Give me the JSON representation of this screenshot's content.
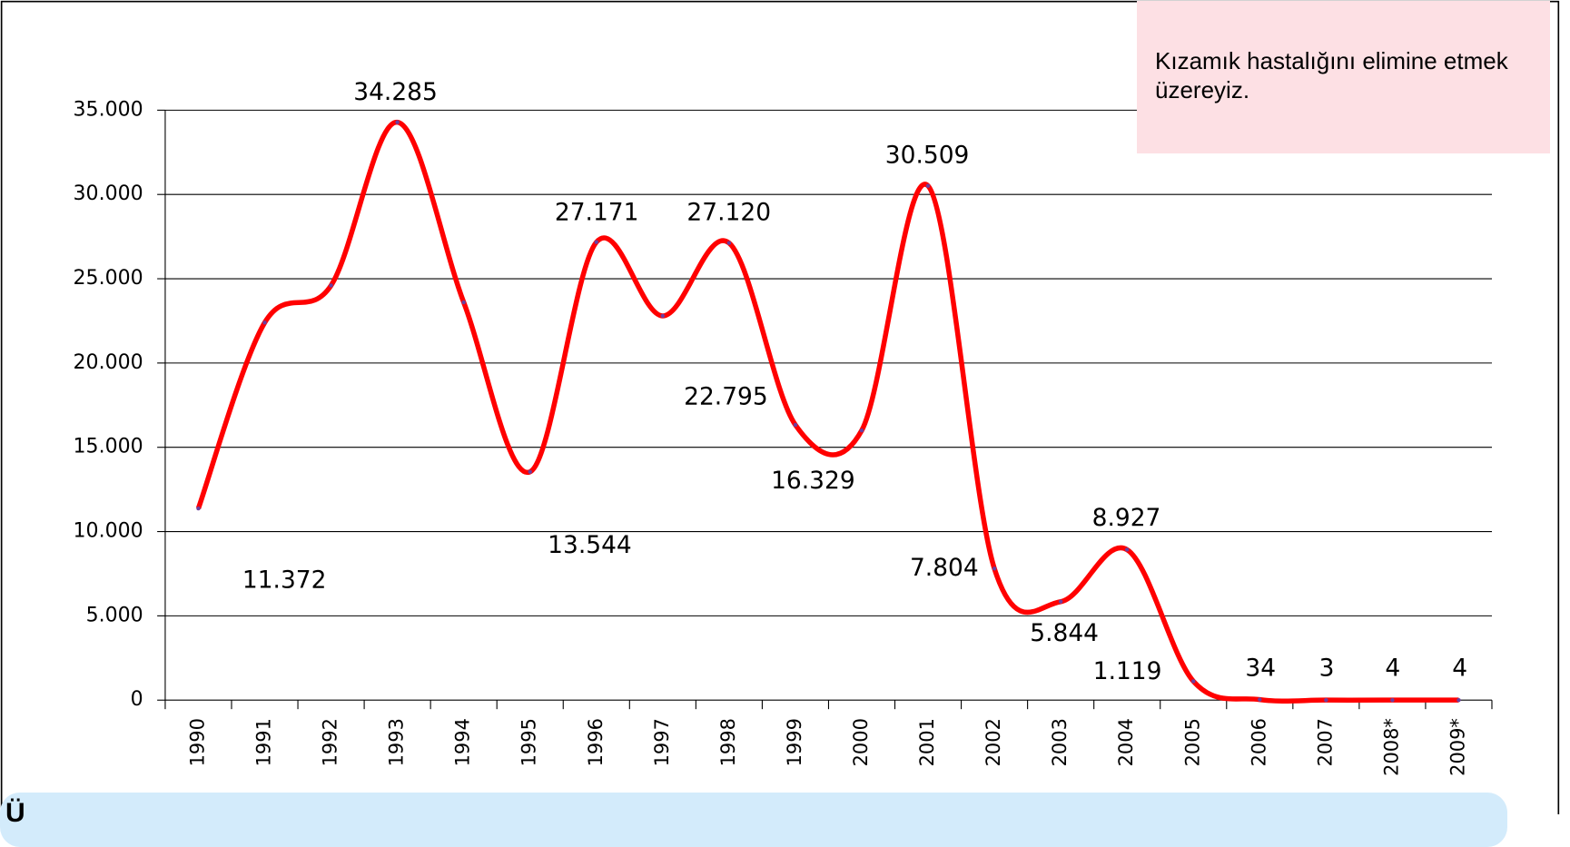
{
  "chart_data": {
    "type": "line",
    "categories": [
      "1990",
      "1991",
      "1992",
      "1993",
      "1994",
      "1995",
      "1996",
      "1997",
      "1998",
      "1999",
      "2000",
      "2001",
      "2002",
      "2003",
      "2004",
      "2005",
      "2006",
      "2007",
      "2008*",
      "2009*"
    ],
    "values": [
      11372,
      22400,
      24600,
      34285,
      23600,
      13544,
      27171,
      22795,
      27120,
      16329,
      16000,
      30509,
      7804,
      5844,
      8927,
      1119,
      34,
      3,
      4,
      4
    ],
    "value_labels": [
      "11.372",
      null,
      null,
      "34.285",
      null,
      "13.544",
      "27.171",
      "22.795",
      "27.120",
      "16.329",
      null,
      "30.509",
      "7.804",
      "5.844",
      "8.927",
      "1.119",
      "34",
      "3",
      "4",
      "4"
    ],
    "color": "#ff0000",
    "ylim": [
      0,
      35000
    ],
    "yticks": [
      {
        "value": 0,
        "label": "0"
      },
      {
        "value": 5000,
        "label": "5.000"
      },
      {
        "value": 10000,
        "label": "10.000"
      },
      {
        "value": 15000,
        "label": "15.000"
      },
      {
        "value": 20000,
        "label": "20.000"
      },
      {
        "value": 25000,
        "label": "25.000"
      },
      {
        "value": 30000,
        "label": "30.000"
      },
      {
        "value": 35000,
        "label": "35.000"
      }
    ],
    "grid": true,
    "annotation": "Kızamık hastalığını elimine etmek üzereyiz.",
    "footer": "Ü"
  }
}
